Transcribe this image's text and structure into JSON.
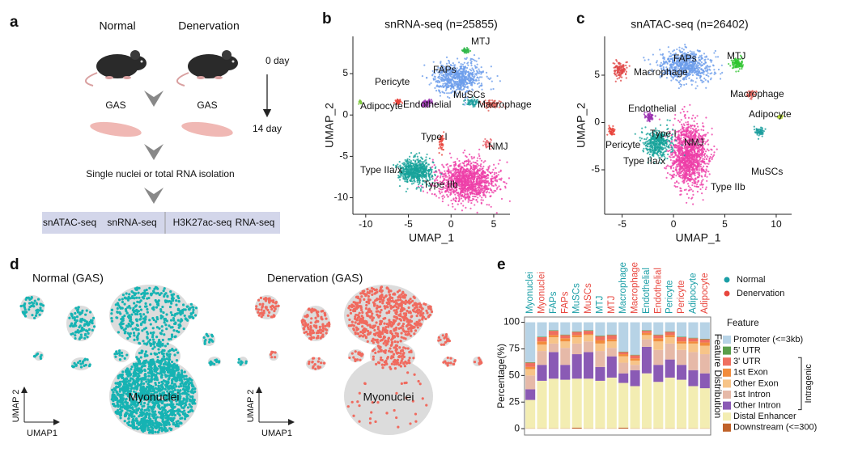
{
  "panel_labels": [
    "a",
    "b",
    "c",
    "d",
    "e"
  ],
  "workflow": {
    "conditions": [
      "Normal",
      "Denervation"
    ],
    "timepoints": [
      "0 day",
      "14 day"
    ],
    "tissue": [
      "GAS",
      "GAS"
    ],
    "step": "Single nuclei or total RNA isolation",
    "assays": [
      "snATAC-seq",
      "snRNA-seq",
      "H3K27ac-seq",
      "RNA-seq"
    ]
  },
  "chart_data": [
    {
      "type": "scatter",
      "title": "snRNA-seq (n=25855)",
      "xlabel": "UMAP_1",
      "ylabel": "UMAP_2",
      "xlim": [
        -11.5,
        6.9
      ],
      "ylim": [
        -12,
        9.5
      ],
      "xticks": [
        -10,
        -5,
        0,
        5
      ],
      "yticks": [
        -10,
        -5,
        0,
        5
      ],
      "clusters": [
        "MTJ",
        "FAPs",
        "Pericyte",
        "MuSCs",
        "Macrophage",
        "Adipocyte",
        "Endothelial",
        "Type I",
        "NMJ",
        "Type IIa/x",
        "Type IIb"
      ],
      "cluster_colors": [
        "#2fb84a",
        "#6d9eeb",
        "#e8423a",
        "#1b9e9e",
        "#e0625a",
        "#7cc83a",
        "#9a2fb0",
        "#e8423a",
        "#e8626a",
        "#16a39a",
        "#ee3fa8"
      ]
    },
    {
      "type": "scatter",
      "title": "snATAC-seq (n=26402)",
      "xlabel": "UMAP_1",
      "ylabel": "UMAP_2",
      "xlim": [
        -6.7,
        11.5
      ],
      "ylim": [
        -9.7,
        9.1
      ],
      "xticks": [
        -5,
        0,
        5,
        10
      ],
      "yticks": [
        -5,
        0,
        5
      ],
      "clusters": [
        "Macrophage",
        "FAPs",
        "MTJ",
        "Macrophage",
        "Endothelial",
        "Adipocyte",
        "Type I",
        "NMJ",
        "Pericyte",
        "MuSCs",
        "Type IIa/x",
        "Type IIb"
      ],
      "cluster_colors": [
        "#e04848",
        "#6d9eeb",
        "#2fc42f",
        "#e0625a",
        "#9a2fb0",
        "#b5d43a",
        "#16a39a",
        "#ee3fa8",
        "#e8423a",
        "#1b9e9e",
        "#16a39a",
        "#ee3fa8"
      ]
    },
    {
      "type": "bar",
      "stacked": true,
      "ylabel": "Percentage(%)",
      "right_label": "Feature Distribution",
      "legend_title": "Feature",
      "bracket_label": "Intragenic",
      "categories": [
        "Myonuclei",
        "Myonuclei",
        "FAPs",
        "FAPs",
        "MuSCs",
        "MuSCs",
        "MTJ",
        "MTJ",
        "Macrophage",
        "Macrophage",
        "Endothelial",
        "Endothelial",
        "Pericyte",
        "Pericyte",
        "Adipocyte",
        "Adipocyte"
      ],
      "category_colors": [
        "#1a9ea6",
        "#e8463e",
        "#1a9ea6",
        "#e8463e",
        "#1a9ea6",
        "#e8463e",
        "#1a9ea6",
        "#e8463e",
        "#1a9ea6",
        "#e8463e",
        "#1a9ea6",
        "#e8463e",
        "#1a9ea6",
        "#e8463e",
        "#1a9ea6",
        "#e8463e"
      ],
      "legend_groups": [
        {
          "name": "Normal",
          "color": "#1a9ea6"
        },
        {
          "name": "Denervation",
          "color": "#e8463e"
        }
      ],
      "ylim": [
        -6,
        105
      ],
      "yticks": [
        0,
        25,
        50,
        75,
        100
      ],
      "grid": false,
      "series": [
        {
          "name": "Downstream (<=300)",
          "color": "#c0622a",
          "values": [
            0.3,
            0.3,
            0.3,
            0.3,
            1,
            0.3,
            0.3,
            0.3,
            1,
            0.3,
            0.3,
            0.3,
            0.3,
            0.3,
            0.3,
            0.3
          ]
        },
        {
          "name": "Distal Enhancer",
          "color": "#f3edb2",
          "values": [
            26.7,
            44.7,
            46.7,
            45.7,
            46,
            46.7,
            44.7,
            47.7,
            42,
            39.7,
            51.7,
            43.7,
            47.7,
            45.7,
            39.7,
            37.7
          ]
        },
        {
          "name": "Other Intron",
          "color": "#8a5ab5",
          "values": [
            10,
            15,
            25,
            14,
            23,
            25,
            13,
            20,
            9,
            15,
            25,
            16,
            17,
            14,
            15,
            14
          ]
        },
        {
          "name": "1st Intron",
          "color": "#e6b9a8",
          "values": [
            13,
            13,
            8,
            16,
            10,
            10,
            15,
            8,
            10,
            5,
            7,
            14,
            15,
            14,
            17,
            18
          ]
        },
        {
          "name": "Other Exon",
          "color": "#f7c488",
          "values": [
            6,
            6,
            6,
            6,
            6,
            6,
            7,
            6,
            6,
            4,
            4,
            8,
            6,
            6,
            8,
            8
          ]
        },
        {
          "name": "1st Exon",
          "color": "#f28c3c",
          "values": [
            2,
            3,
            2,
            3,
            2,
            1,
            3,
            2,
            2,
            2,
            2,
            3,
            2,
            2,
            2,
            3
          ]
        },
        {
          "name": "3' UTR",
          "color": "#ef6f5f",
          "values": [
            4,
            4,
            4,
            3,
            3,
            3,
            4,
            4,
            2,
            3,
            2,
            3,
            3,
            4,
            3,
            3
          ]
        },
        {
          "name": "5' UTR",
          "color": "#5a9e4a",
          "values": [
            0.5,
            0.5,
            0.5,
            0.5,
            0.5,
            0.5,
            0.5,
            0.5,
            0.5,
            0.5,
            0.5,
            0.5,
            0.5,
            0.5,
            0.5,
            0.5
          ]
        },
        {
          "name": "Promoter (<=3kb)",
          "color": "#b7d3e6",
          "values": [
            37.5,
            13.5,
            7.5,
            11.5,
            8.5,
            7.5,
            12.5,
            11.5,
            27.5,
            30.5,
            7.5,
            11.5,
            8.5,
            13.5,
            14.5,
            15.5
          ]
        }
      ]
    }
  ],
  "feature_plots": [
    {
      "title": "Normal (GAS)",
      "label": "Myonuclei",
      "xlabel": "UMAP1",
      "ylabel": "UMAP 2",
      "color": "#16b3b3"
    },
    {
      "title": "Denervation (GAS)",
      "label": "Myonuclei",
      "xlabel": "UMAP1",
      "ylabel": "UMAP 2",
      "color": "#f06a5e"
    }
  ]
}
